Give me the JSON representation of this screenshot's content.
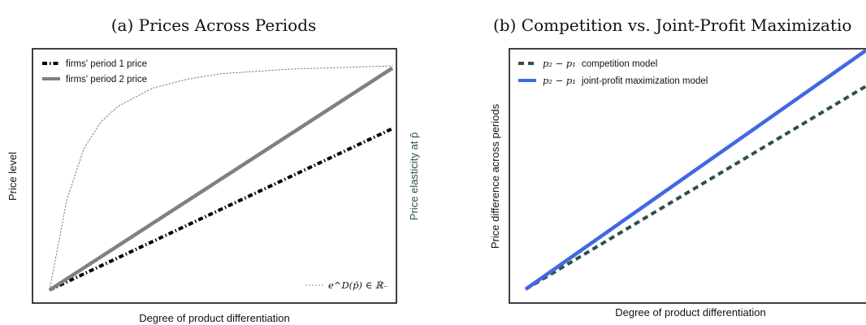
{
  "chart_data": [
    {
      "type": "line",
      "title": "(a) Prices Across Periods",
      "xlabel": "Degree of product differentiation",
      "ylabel": "Price level",
      "ylabel_right": "Price elasticity at p̄",
      "xlim": [
        0,
        1
      ],
      "ylim": [
        0,
        1
      ],
      "grid": false,
      "legend_position": "top-left",
      "ticks": "none",
      "series": [
        {
          "name": "firms' period 1 price",
          "style": "dashdot-thick",
          "color": "#000000",
          "x": [
            0,
            1
          ],
          "y": [
            0,
            0.72
          ]
        },
        {
          "name": "firms' period 2 price",
          "style": "solid-thick",
          "color": "#808080",
          "x": [
            0,
            1
          ],
          "y": [
            0,
            0.99
          ]
        },
        {
          "name": "e^D(p̄) ∈ ℝ₋",
          "style": "dotted-thin",
          "color": "#777777",
          "x": [
            0,
            0.05,
            0.1,
            0.15,
            0.2,
            0.3,
            0.4,
            0.5,
            0.6,
            0.7,
            0.8,
            0.9,
            1.0
          ],
          "y": [
            0,
            0.4,
            0.63,
            0.75,
            0.82,
            0.9,
            0.94,
            0.965,
            0.975,
            0.985,
            0.99,
            0.995,
            1.0
          ]
        }
      ],
      "legend": {
        "entries": [
          "firms' period 1 price",
          "firms' period 2 price"
        ],
        "secondary_entry": "e^D(p̄) ∈ ℝ₋",
        "secondary_position": "bottom-right"
      }
    },
    {
      "type": "line",
      "title": "(b) Competition vs. Joint-Profit Maximizatio",
      "xlabel": "Degree of product differentiation",
      "ylabel": "Price difference across periods",
      "xlim": [
        0,
        1
      ],
      "ylim": [
        0,
        1
      ],
      "grid": false,
      "legend_position": "top-left",
      "ticks": "none",
      "series": [
        {
          "name": "p₂ − p₁ competition model",
          "style": "dashed-thick",
          "color": "#2f4f4f",
          "x": [
            0,
            1
          ],
          "y": [
            0,
            0.85
          ]
        },
        {
          "name": "p₂ − p₁ joint-profit maximization model",
          "style": "solid-thick",
          "color": "#4169e1",
          "x": [
            0,
            1
          ],
          "y": [
            0,
            1.0
          ]
        }
      ],
      "legend": {
        "math_prefix": "p₂ − p₁",
        "entries": [
          "competition model",
          "joint-profit maximization model"
        ]
      }
    }
  ]
}
